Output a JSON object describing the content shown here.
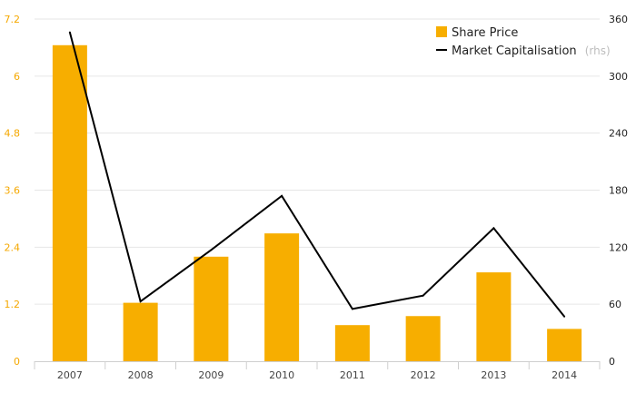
{
  "chart_data": {
    "type": "bar",
    "categories": [
      "2007",
      "2008",
      "2009",
      "2010",
      "2011",
      "2012",
      "2013",
      "2014"
    ],
    "series": [
      {
        "name": "Share Price",
        "kind": "bar",
        "axis": "left",
        "color": "#f7ae00",
        "values": [
          6.65,
          1.23,
          2.2,
          2.69,
          0.76,
          0.95,
          1.87,
          0.68
        ]
      },
      {
        "name": "Market Capitalisation",
        "name_suffix": "(rhs)",
        "kind": "line",
        "axis": "right",
        "color": "#000000",
        "values": [
          346,
          63,
          117,
          174,
          55,
          69,
          140,
          47
        ]
      }
    ],
    "y_left": {
      "min": 0,
      "max": 7.2,
      "ticks": [
        "0",
        "1.2",
        "2.4",
        "3.6",
        "4.8",
        "6",
        "7.2"
      ],
      "tick_color": "#f5a800"
    },
    "y_right": {
      "min": 0,
      "max": 360,
      "ticks": [
        "0",
        "60",
        "120",
        "180",
        "240",
        "300",
        "360"
      ]
    },
    "grid": true,
    "legend_position": "top-right",
    "title": "",
    "xlabel": "",
    "ylabel": ""
  }
}
